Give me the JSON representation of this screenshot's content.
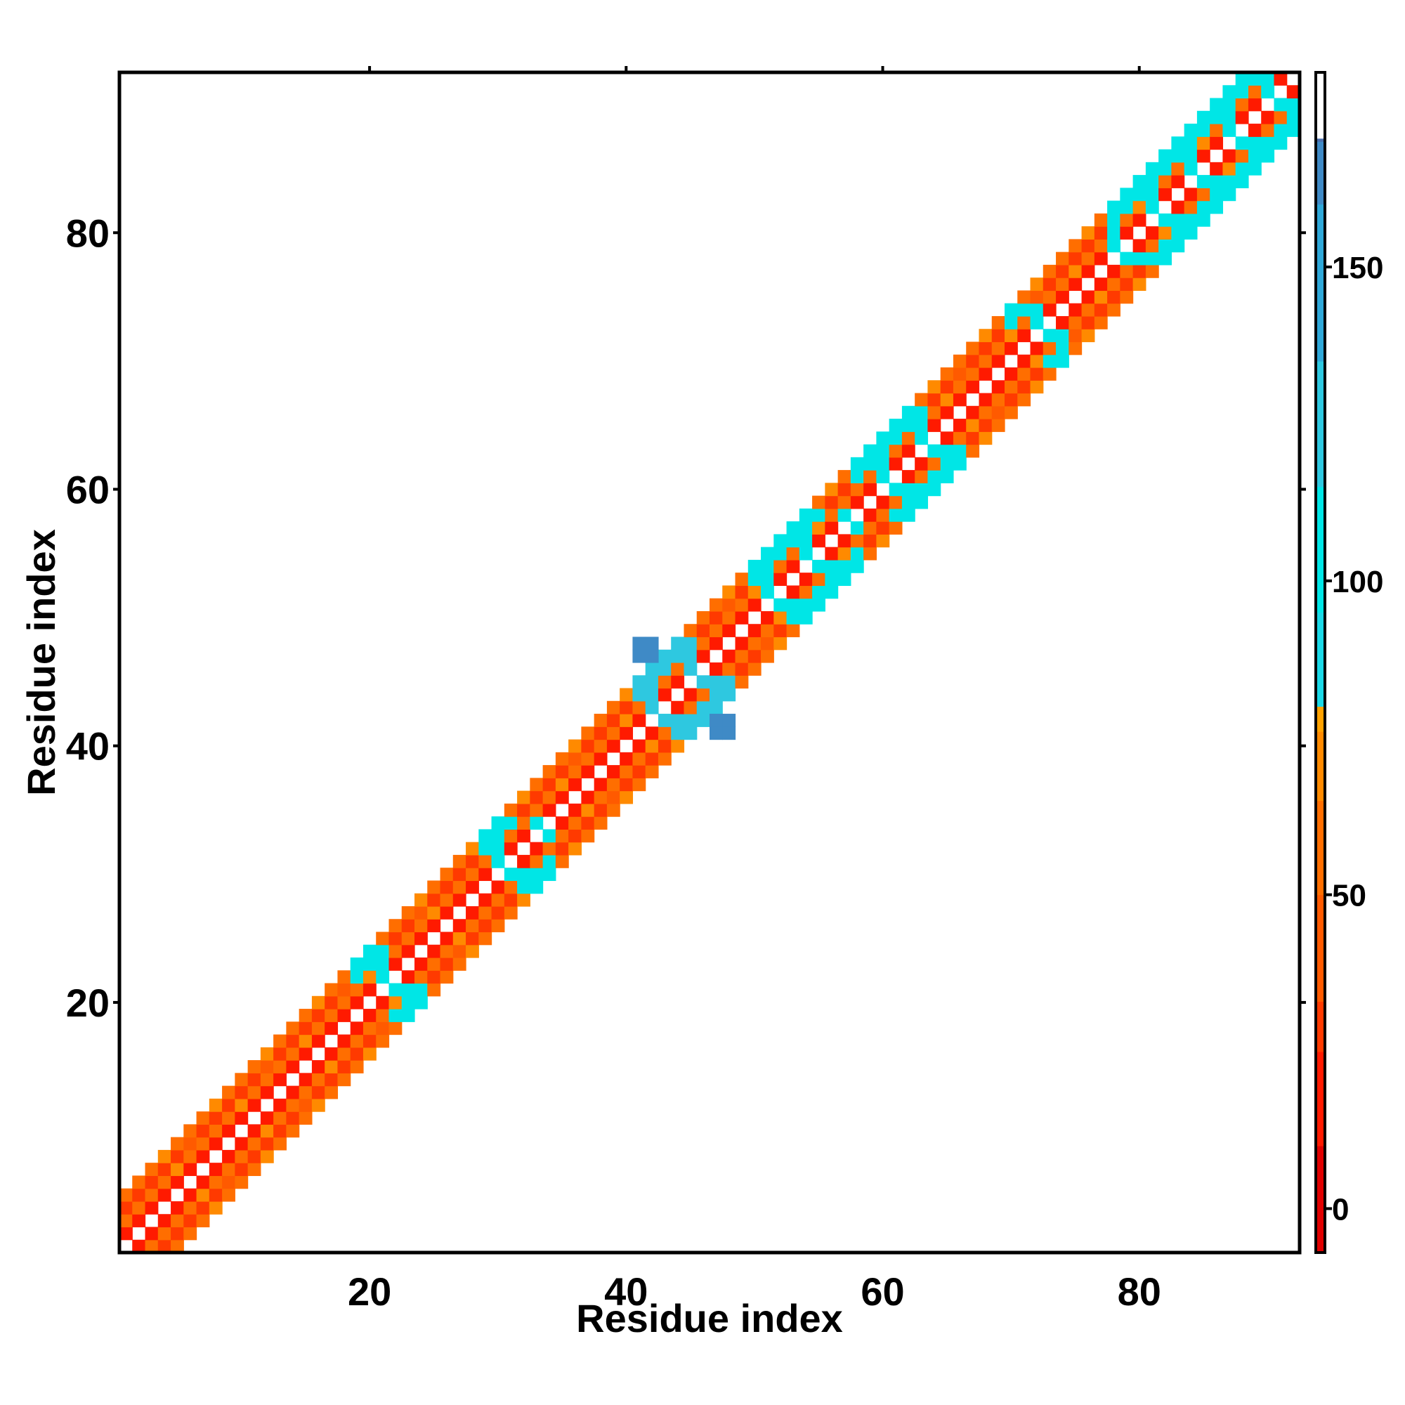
{
  "chart_data": {
    "type": "heatmap",
    "title": "",
    "xlabel": "Residue index",
    "ylabel": "Residue index",
    "xlim": [
      0.5,
      92.5
    ],
    "ylim": [
      0.5,
      92.5
    ],
    "x_ticks": [
      20,
      40,
      60,
      80
    ],
    "y_ticks": [
      20,
      40,
      60,
      80
    ],
    "grid": false,
    "colorbar": {
      "range": [
        -7,
        181
      ],
      "ticks": [
        0,
        50,
        100,
        150
      ],
      "stops": [
        {
          "value": -7,
          "color": "#e00000"
        },
        {
          "value": 10,
          "color": "#ff1a00"
        },
        {
          "value": 25,
          "color": "#ff3a00"
        },
        {
          "value": 33,
          "color": "#ff5a00"
        },
        {
          "value": 50,
          "color": "#ff6e00"
        },
        {
          "value": 65,
          "color": "#ff8a00"
        },
        {
          "value": 76,
          "color": "#ffa200"
        },
        {
          "value": 80,
          "color": "#1ad8e6"
        },
        {
          "value": 95,
          "color": "#00e6e6"
        },
        {
          "value": 115,
          "color": "#2ec8e0"
        },
        {
          "value": 135,
          "color": "#2fa8d8"
        },
        {
          "value": 160,
          "color": "#3f8ac6"
        },
        {
          "value": 170,
          "color": "#4a6fae"
        },
        {
          "value": 170.5,
          "color": "#ffffff"
        },
        {
          "value": 181,
          "color": "#ffffff"
        }
      ]
    },
    "pattern": {
      "n_residues": 92,
      "offsets_1": 10,
      "offsets_2": 55,
      "offsets_3": 30,
      "offsets_4": 55,
      "cyan_windows": [
        {
          "from": 1,
          "to": 2,
          "value": 95
        },
        {
          "from": 19,
          "to": 24,
          "value": 110
        },
        {
          "from": 29,
          "to": 34,
          "value": 105
        },
        {
          "from": 41,
          "to": 48,
          "value": 120
        },
        {
          "from": 50,
          "to": 58,
          "value": 110
        },
        {
          "from": 58,
          "to": 66,
          "value": 100
        },
        {
          "from": 70,
          "to": 74,
          "value": 100
        },
        {
          "from": 78,
          "to": 92,
          "value": 95
        }
      ],
      "deep_blue": [
        {
          "i": 41,
          "j": 47,
          "value": 160
        },
        {
          "i": 41,
          "j": 48,
          "value": 160
        },
        {
          "i": 42,
          "j": 47,
          "value": 160
        },
        {
          "i": 42,
          "j": 48,
          "value": 160
        },
        {
          "i": 47,
          "j": 41,
          "value": 160
        },
        {
          "i": 48,
          "j": 41,
          "value": 160
        },
        {
          "i": 47,
          "j": 42,
          "value": 160
        },
        {
          "i": 48,
          "j": 42,
          "value": 160
        }
      ]
    }
  }
}
